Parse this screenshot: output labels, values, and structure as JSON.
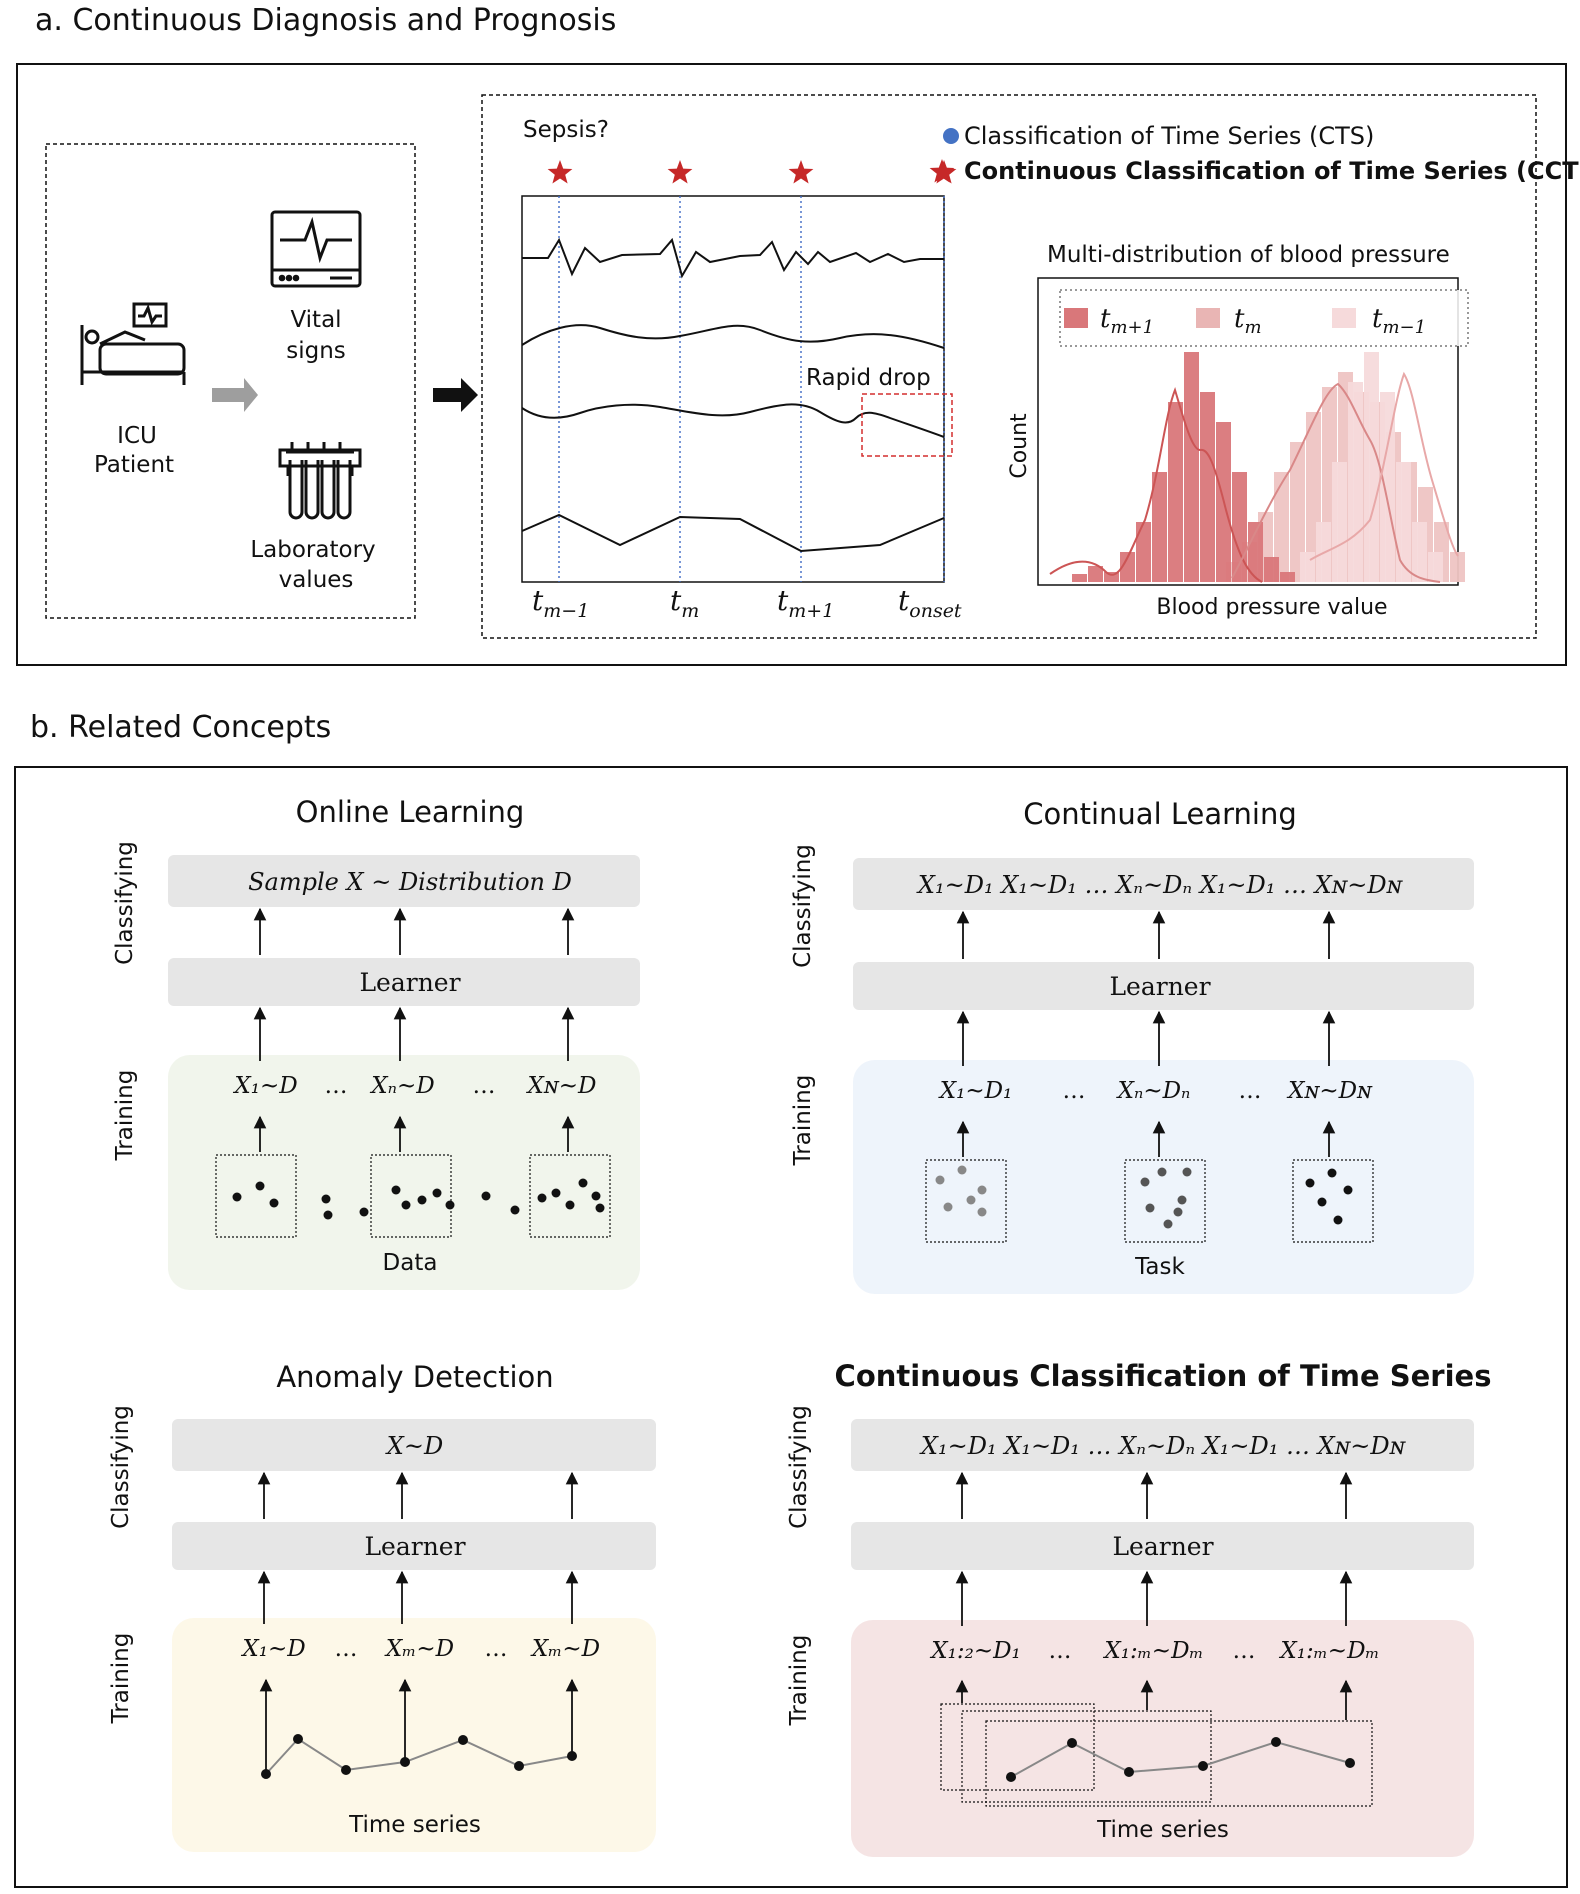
{
  "section_a": {
    "title": "a. Continuous Diagnosis and Prognosis",
    "icu_patient": [
      "ICU",
      "Patient"
    ],
    "vital_signs": [
      "Vital",
      "signs"
    ],
    "lab_values": [
      "Laboratory",
      "values"
    ],
    "sepsis_question": "Sepsis?",
    "legend_cts": "Classification of Time Series (CTS)",
    "legend_ccts": "Continuous Classification of Time Series (CCTS)",
    "rapid_drop": "Rapid drop",
    "time_labels": [
      {
        "base": "t",
        "sub": "m−1"
      },
      {
        "base": "t",
        "sub": "m"
      },
      {
        "base": "t",
        "sub": "m+1"
      },
      {
        "base": "t",
        "sub": "onset"
      }
    ],
    "hist_title": "Multi-distribution of blood pressure",
    "hist_ylabel": "Count",
    "hist_xlabel": "Blood pressure value",
    "hist_legend": [
      {
        "base": "t",
        "sub": "m+1",
        "color": "#d9777a"
      },
      {
        "base": "t",
        "sub": "m",
        "color": "#e9b5b4"
      },
      {
        "base": "t",
        "sub": "m−1",
        "color": "#f6dadb"
      }
    ],
    "colors": {
      "star": "#c62828",
      "cts_dot": "#4472c4",
      "dashed_box": "#d32f2f"
    }
  },
  "section_b": {
    "title": "b. Related Concepts",
    "axis_classifying": "Classifying",
    "axis_training": "Training",
    "learner_label": "Learner",
    "online": {
      "title": "Online Learning",
      "classify_text": "Sample X ~ Distribution D",
      "samples": [
        "X₁~D",
        "…",
        "Xₙ~D",
        "…",
        "Xɴ~D"
      ],
      "footer": "Data",
      "bg": "#f1f5ec"
    },
    "continual": {
      "title": "Continual Learning",
      "classify_text": "X₁~D₁   X₁~D₁ … Xₙ~Dₙ   X₁~D₁ … Xɴ~Dɴ",
      "samples": [
        "X₁~D₁",
        "…",
        "Xₙ~Dₙ",
        "…",
        "Xɴ~Dɴ"
      ],
      "footer": "Task",
      "bg": "#eef4fb"
    },
    "anomaly": {
      "title": "Anomaly Detection",
      "classify_text": "X~D",
      "samples": [
        "X₁~D",
        "…",
        "Xₘ~D",
        "…",
        "Xₘ~D"
      ],
      "footer": "Time series",
      "bg": "#fdf8e8"
    },
    "ccts": {
      "title": "Continuous Classification of Time Series",
      "classify_text": "X₁~D₁   X₁~D₁ … Xₙ~Dₙ   X₁~D₁ … Xɴ~Dɴ",
      "samples": [
        "X₁:₂~D₁",
        "…",
        "X₁:ₘ~Dₘ",
        "…",
        "X₁:ₘ~Dₘ"
      ],
      "footer": "Time series",
      "bg": "#f5e4e4"
    }
  }
}
